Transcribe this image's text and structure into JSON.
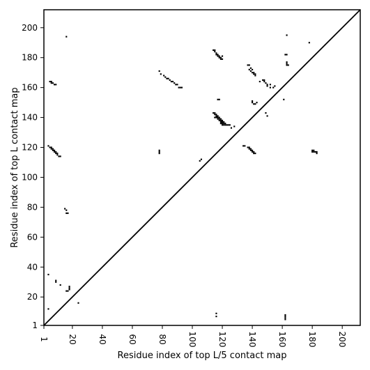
{
  "chart_data": {
    "type": "scatter",
    "subtype": "contact-map",
    "xlabel": "Residue index of top L/5 contact map",
    "ylabel": "Residue index of top L contact map",
    "xlim": [
      1,
      212
    ],
    "ylim": [
      1,
      212
    ],
    "xticks": [
      1,
      20,
      40,
      60,
      80,
      100,
      120,
      140,
      160,
      180,
      200
    ],
    "yticks": [
      1,
      20,
      40,
      60,
      80,
      100,
      120,
      140,
      160,
      180,
      200
    ],
    "xtick_labels": [
      "1",
      "20",
      "40",
      "60",
      "80",
      "100",
      "120",
      "140",
      "160",
      "180",
      "200"
    ],
    "ytick_labels": [
      "1",
      "20",
      "40",
      "60",
      "80",
      "100",
      "120",
      "140",
      "160",
      "180",
      "200"
    ],
    "diagonal": true,
    "marker_color": "#000000",
    "upper_triangle_points": [
      [
        4,
        121
      ],
      [
        5,
        120
      ],
      [
        6,
        120
      ],
      [
        6,
        119
      ],
      [
        7,
        119
      ],
      [
        7,
        118
      ],
      [
        8,
        118
      ],
      [
        8,
        117
      ],
      [
        9,
        117
      ],
      [
        9,
        116
      ],
      [
        10,
        116
      ],
      [
        10,
        115
      ],
      [
        11,
        114
      ],
      [
        12,
        114
      ],
      [
        5,
        164
      ],
      [
        6,
        164
      ],
      [
        6,
        163
      ],
      [
        7,
        163
      ],
      [
        8,
        162
      ],
      [
        9,
        162
      ],
      [
        15,
        79
      ],
      [
        16,
        78
      ],
      [
        16,
        76
      ],
      [
        17,
        76
      ],
      [
        16,
        194
      ],
      [
        78,
        118
      ],
      [
        78,
        117
      ],
      [
        78,
        116
      ],
      [
        78,
        171
      ],
      [
        79,
        169
      ],
      [
        81,
        168
      ],
      [
        82,
        167
      ],
      [
        83,
        166
      ],
      [
        84,
        166
      ],
      [
        85,
        165
      ],
      [
        86,
        164
      ],
      [
        87,
        164
      ],
      [
        88,
        163
      ],
      [
        89,
        162
      ],
      [
        90,
        162
      ],
      [
        91,
        160
      ],
      [
        92,
        160
      ],
      [
        93,
        160
      ],
      [
        105,
        111
      ],
      [
        106,
        112
      ],
      [
        114,
        185
      ],
      [
        115,
        185
      ],
      [
        115,
        184
      ],
      [
        116,
        183
      ],
      [
        116,
        182
      ],
      [
        117,
        182
      ],
      [
        117,
        181
      ],
      [
        118,
        181
      ],
      [
        118,
        180
      ],
      [
        119,
        180
      ],
      [
        119,
        179
      ],
      [
        120,
        179
      ],
      [
        120,
        181
      ],
      [
        117,
        152
      ],
      [
        118,
        152
      ],
      [
        114,
        143
      ],
      [
        115,
        143
      ],
      [
        115,
        142
      ],
      [
        116,
        142
      ],
      [
        116,
        141
      ],
      [
        117,
        141
      ],
      [
        117,
        140
      ],
      [
        118,
        140
      ],
      [
        118,
        139
      ],
      [
        119,
        139
      ],
      [
        119,
        138
      ],
      [
        120,
        138
      ],
      [
        120,
        137
      ],
      [
        121,
        137
      ],
      [
        121,
        136
      ],
      [
        122,
        136
      ],
      [
        122,
        135
      ],
      [
        123,
        135
      ],
      [
        124,
        135
      ],
      [
        125,
        135
      ],
      [
        126,
        133
      ],
      [
        128,
        134
      ],
      [
        115,
        140
      ],
      [
        116,
        140
      ],
      [
        117,
        139
      ],
      [
        118,
        138
      ],
      [
        119,
        137
      ],
      [
        119,
        136
      ],
      [
        120,
        136
      ],
      [
        120,
        135
      ],
      [
        121,
        135
      ],
      [
        134,
        121
      ],
      [
        135,
        121
      ],
      [
        137,
        120
      ],
      [
        138,
        120
      ],
      [
        138,
        119
      ],
      [
        139,
        119
      ],
      [
        139,
        118
      ],
      [
        140,
        118
      ],
      [
        140,
        117
      ],
      [
        141,
        117
      ],
      [
        141,
        116
      ],
      [
        142,
        116
      ],
      [
        137,
        175
      ],
      [
        138,
        175
      ],
      [
        138,
        172
      ],
      [
        139,
        173
      ],
      [
        139,
        171
      ],
      [
        140,
        172
      ],
      [
        140,
        170
      ],
      [
        141,
        170
      ],
      [
        141,
        169
      ],
      [
        142,
        169
      ],
      [
        142,
        168
      ],
      [
        140,
        151
      ],
      [
        140,
        150
      ],
      [
        141,
        149
      ],
      [
        142,
        149
      ],
      [
        143,
        150
      ],
      [
        145,
        164
      ],
      [
        147,
        165
      ],
      [
        148,
        165
      ],
      [
        148,
        164
      ],
      [
        149,
        163
      ],
      [
        150,
        162
      ],
      [
        150,
        161
      ],
      [
        152,
        162
      ],
      [
        152,
        160
      ],
      [
        154,
        160
      ],
      [
        155,
        161
      ],
      [
        149,
        143
      ],
      [
        150,
        141
      ],
      [
        161,
        152
      ],
      [
        162,
        182
      ],
      [
        163,
        182
      ],
      [
        163,
        177
      ],
      [
        163,
        176
      ],
      [
        163,
        175
      ],
      [
        164,
        175
      ],
      [
        163,
        195
      ],
      [
        178,
        190
      ],
      [
        180,
        118
      ],
      [
        181,
        118
      ],
      [
        180,
        117
      ],
      [
        181,
        117
      ],
      [
        182,
        117
      ],
      [
        183,
        117
      ],
      [
        183,
        116
      ]
    ],
    "lower_triangle_points": [
      [
        4,
        12
      ],
      [
        4,
        35
      ],
      [
        9,
        31
      ],
      [
        9,
        30
      ],
      [
        12,
        28
      ],
      [
        16,
        24
      ],
      [
        17,
        24
      ],
      [
        18,
        27
      ],
      [
        18,
        26
      ],
      [
        18,
        25
      ],
      [
        24,
        16
      ],
      [
        116,
        9
      ],
      [
        116,
        7
      ],
      [
        162,
        8
      ],
      [
        162,
        7
      ],
      [
        162,
        6
      ],
      [
        162,
        5
      ]
    ]
  }
}
